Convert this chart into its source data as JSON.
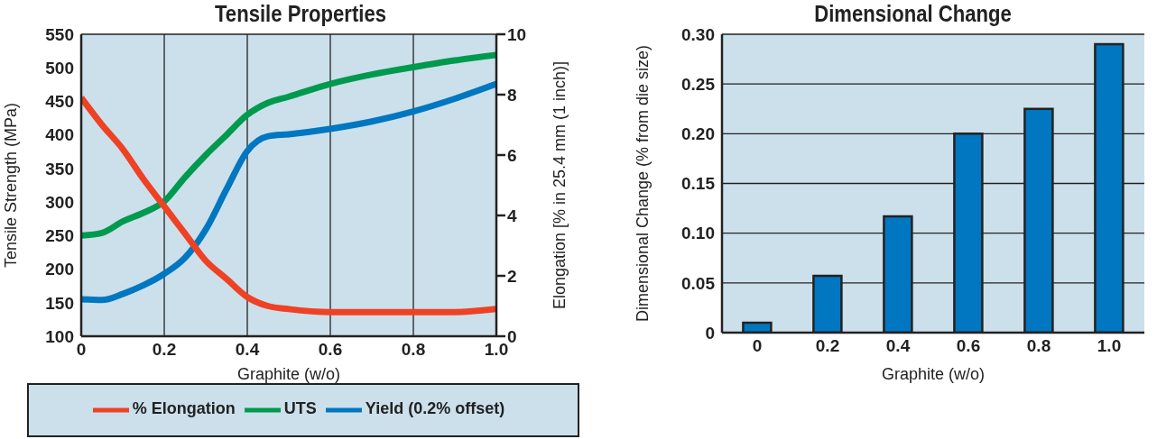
{
  "chart_data": [
    {
      "type": "line",
      "title": "Tensile Properties",
      "xlabel": "Graphite  (w/o)",
      "ylabel": "Tensile Strength (MPa)",
      "y2label": "Elongation [% in 25.4 mm (1 inch)]",
      "x": [
        0,
        0.05,
        0.1,
        0.15,
        0.2,
        0.25,
        0.3,
        0.35,
        0.4,
        0.45,
        0.5,
        0.6,
        0.7,
        0.8,
        0.9,
        1.0
      ],
      "series": [
        {
          "name": "Yield (0.2% offset)",
          "color": "#0077c0",
          "values": [
            155,
            154,
            163,
            176,
            193,
            217,
            259,
            319,
            376,
            398,
            401,
            409,
            420,
            435,
            454,
            476
          ]
        },
        {
          "name": "UTS",
          "color": "#009a4e",
          "values": [
            250,
            254,
            271,
            284,
            301,
            337,
            370,
            400,
            430,
            448,
            457,
            476,
            490,
            501,
            511,
            519
          ]
        },
        {
          "name": "% Elongation",
          "color": "#ef4123",
          "axis": "y2",
          "values": [
            7.9,
            7.0,
            6.2,
            5.2,
            4.3,
            3.4,
            2.5,
            1.9,
            1.3,
            1.0,
            0.9,
            0.8,
            0.8,
            0.8,
            0.8,
            0.9
          ]
        }
      ],
      "xlim": [
        0,
        1
      ],
      "xticks": [
        0,
        0.2,
        0.4,
        0.6,
        0.8,
        {
          "value": 1,
          "label": "1.0"
        }
      ],
      "ylim": [
        100,
        550
      ],
      "yticks": [
        100,
        150,
        200,
        250,
        300,
        350,
        400,
        450,
        500,
        550
      ],
      "y2lim": [
        0,
        10
      ],
      "y2ticks": [
        0,
        2,
        4,
        6,
        8,
        10
      ],
      "grid": true,
      "legend": "bottom"
    },
    {
      "type": "bar",
      "title": "Dimensional Change",
      "xlabel": "Graphite  (w/o)",
      "ylabel": "Dimensional Change (% from die size)",
      "categories": [
        "0",
        "0.2",
        "0.4",
        "0.6",
        "0.8",
        "1.0"
      ],
      "values": [
        0.01,
        0.057,
        0.117,
        0.2,
        0.225,
        0.29
      ],
      "color": "#0077c0",
      "ylim": [
        0,
        0.3
      ],
      "yticks": [
        0,
        0.05,
        {
          "value": 0.1,
          "label": "0.10"
        },
        0.15,
        {
          "value": 0.2,
          "label": "0.20"
        },
        0.25,
        {
          "value": 0.3,
          "label": "0.30"
        }
      ],
      "grid": "y"
    }
  ]
}
